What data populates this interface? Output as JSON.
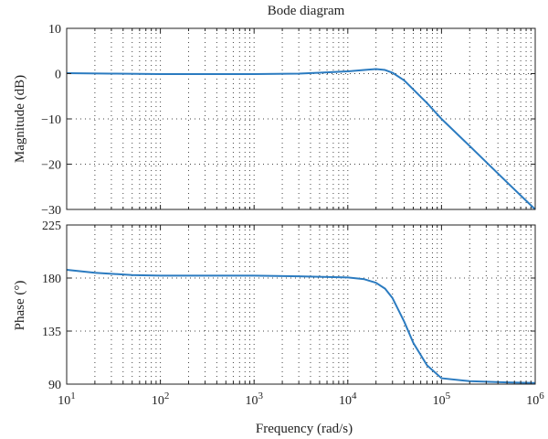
{
  "chart_data": [
    {
      "type": "line",
      "title": "Bode diagram",
      "xlabel": "",
      "ylabel": "Magnitude (dB)",
      "xscale": "log",
      "xlim": [
        10,
        1000000
      ],
      "ylim": [
        -30,
        10
      ],
      "yticks": [
        -30,
        -20,
        -10,
        0,
        10
      ],
      "ytick_labels": [
        "−30",
        "−20",
        "−10",
        "0",
        "10"
      ],
      "grid": true,
      "series": [
        {
          "color": "#2b7bc0",
          "x": [
            10,
            30,
            100,
            300,
            1000,
            3000,
            5000,
            10000,
            15000,
            20000,
            25000,
            30000,
            40000,
            50000,
            70000,
            100000,
            200000,
            500000,
            1000000
          ],
          "y": [
            0.1,
            0.0,
            -0.1,
            -0.1,
            -0.1,
            0.0,
            0.2,
            0.5,
            0.8,
            1.0,
            0.8,
            0.2,
            -1.5,
            -3.5,
            -6.5,
            -10.0,
            -16.0,
            -24.0,
            -30.0
          ]
        }
      ]
    },
    {
      "type": "line",
      "title": "",
      "xlabel": "Frequency (rad/s)",
      "ylabel": "Phase (°)",
      "xscale": "log",
      "xlim": [
        10,
        1000000
      ],
      "ylim": [
        90,
        225
      ],
      "yticks": [
        90,
        135,
        180,
        225
      ],
      "ytick_labels": [
        "90",
        "135",
        "180",
        "225"
      ],
      "xticks": [
        10,
        100,
        1000,
        10000,
        100000,
        1000000
      ],
      "xtick_bases": [
        "10",
        "10",
        "10",
        "10",
        "10",
        "10"
      ],
      "xtick_exponents": [
        "1",
        "2",
        "3",
        "4",
        "5",
        "6"
      ],
      "grid": true,
      "series": [
        {
          "color": "#2b7bc0",
          "x": [
            10,
            20,
            50,
            100,
            300,
            1000,
            3000,
            10000,
            15000,
            20000,
            25000,
            30000,
            40000,
            50000,
            70000,
            100000,
            200000,
            500000,
            1000000
          ],
          "y": [
            187,
            184.5,
            182.5,
            182,
            182,
            182,
            181.5,
            180.5,
            179,
            176,
            171,
            163,
            143,
            125,
            106,
            95,
            92.5,
            91.5,
            91
          ]
        }
      ]
    }
  ]
}
